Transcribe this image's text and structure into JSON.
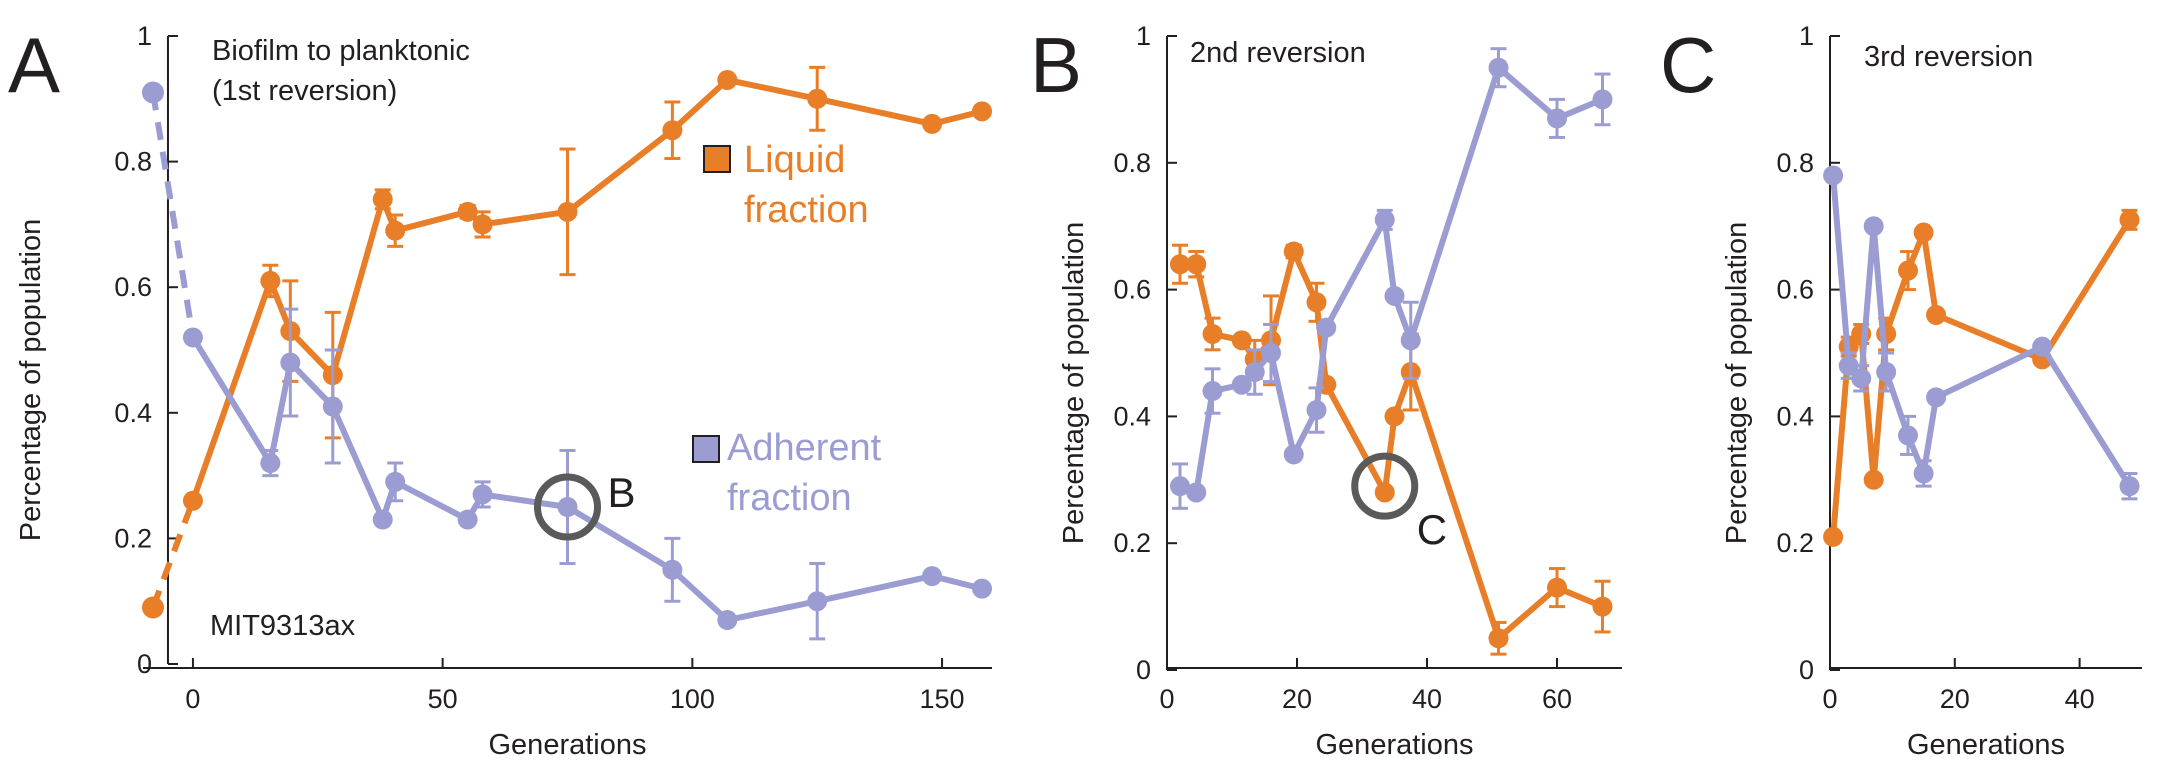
{
  "colors": {
    "liquid": "#e87e27",
    "adherent": "#9b9dd2",
    "circle": "#5a5a5a",
    "ink": "#231f20"
  },
  "chart_data": [
    {
      "type": "line",
      "panel_letter": "A",
      "title": "Biofilm to planktonic\n(1st reversion)",
      "strain_label": "MIT9313ax",
      "xlabel": "Generations",
      "ylabel": "Percentage of population",
      "xlim": [
        -10,
        160
      ],
      "ylim": [
        0,
        1
      ],
      "x_ticks": [
        0,
        50,
        100,
        150
      ],
      "y_ticks": [
        0,
        0.2,
        0.4,
        0.6,
        0.8,
        1
      ],
      "y_tick_labels": [
        "0",
        "0.2",
        "0.4",
        "0.6",
        "0.8",
        "1"
      ],
      "legend": [
        {
          "series": "liquid",
          "line1": "Liquid",
          "line2": "fraction"
        },
        {
          "series": "adherent",
          "line1": "Adherent",
          "line2": "fraction"
        }
      ],
      "series": [
        {
          "key": "liquid",
          "start_point": {
            "x": -8,
            "y": 0.09
          },
          "x": [
            0,
            15.5,
            19.5,
            28,
            38,
            40.5,
            55,
            58,
            75,
            96,
            107,
            125,
            148,
            158
          ],
          "y": [
            0.26,
            0.61,
            0.53,
            0.46,
            0.74,
            0.69,
            0.72,
            0.7,
            0.72,
            0.85,
            0.93,
            0.9,
            0.86,
            0.88
          ],
          "err": [
            0,
            0.025,
            0.08,
            0.1,
            0.015,
            0.025,
            0.01,
            0.02,
            0.1,
            0.045,
            0,
            0.05,
            0,
            0
          ]
        },
        {
          "key": "adherent",
          "start_point": {
            "x": -8,
            "y": 0.91
          },
          "x": [
            0,
            15.5,
            19.5,
            28,
            38,
            40.5,
            55,
            58,
            75,
            96,
            107,
            125,
            148,
            158
          ],
          "y": [
            0.52,
            0.32,
            0.48,
            0.41,
            0.23,
            0.29,
            0.23,
            0.27,
            0.25,
            0.15,
            0.07,
            0.1,
            0.14,
            0.12
          ],
          "err": [
            0,
            0.02,
            0.085,
            0.09,
            0,
            0.03,
            0,
            0.02,
            0.09,
            0.05,
            0,
            0.06,
            0,
            0
          ]
        }
      ],
      "marker": {
        "label": "B",
        "x": 75,
        "y": 0.25
      }
    },
    {
      "type": "line",
      "panel_letter": "B",
      "title": "2nd reversion",
      "xlabel": "Generations",
      "ylabel": "Percentage of population",
      "xlim": [
        0,
        70
      ],
      "ylim": [
        0,
        1
      ],
      "x_ticks": [
        0,
        20,
        40,
        60
      ],
      "y_ticks": [
        0,
        0.2,
        0.4,
        0.6,
        0.8,
        1
      ],
      "y_tick_labels": [
        "0",
        "0.2",
        "0.4",
        "0.6",
        "0.8",
        "1"
      ],
      "series": [
        {
          "key": "liquid",
          "x": [
            2,
            4.5,
            7,
            11.5,
            13.5,
            16,
            19.5,
            23,
            24.5,
            33.5,
            35,
            37.5,
            51,
            60,
            67
          ],
          "y": [
            0.64,
            0.64,
            0.53,
            0.52,
            0.49,
            0.52,
            0.66,
            0.58,
            0.45,
            0.28,
            0.4,
            0.47,
            0.05,
            0.13,
            0.1
          ],
          "err": [
            0.03,
            0.02,
            0.025,
            0,
            0.03,
            0.07,
            0.01,
            0.03,
            0,
            0,
            0,
            0.06,
            0.025,
            0.03,
            0.04
          ]
        },
        {
          "key": "adherent",
          "x": [
            2,
            4.5,
            7,
            11.5,
            13.5,
            16,
            19.5,
            23,
            24.5,
            33.5,
            35,
            37.5,
            51,
            60,
            67
          ],
          "y": [
            0.29,
            0.28,
            0.44,
            0.45,
            0.47,
            0.5,
            0.34,
            0.41,
            0.54,
            0.71,
            0.59,
            0.52,
            0.95,
            0.87,
            0.9
          ],
          "err": [
            0.035,
            0,
            0.035,
            0,
            0.035,
            0.045,
            0,
            0.035,
            0,
            0.015,
            0,
            0.06,
            0.03,
            0.03,
            0.04
          ]
        }
      ],
      "marker": {
        "label": "C",
        "x": 33.5,
        "y": 0.29
      }
    },
    {
      "type": "line",
      "panel_letter": "C",
      "title": "3rd reversion",
      "xlabel": "Generations",
      "ylabel": "Percentage of population",
      "xlim": [
        0,
        50
      ],
      "ylim": [
        0,
        1
      ],
      "x_ticks": [
        0,
        20,
        40
      ],
      "y_ticks": [
        0,
        0.2,
        0.4,
        0.6,
        0.8,
        1
      ],
      "y_tick_labels": [
        "0",
        "0.2",
        "0.4",
        "0.6",
        "0.8",
        "1"
      ],
      "series": [
        {
          "key": "liquid",
          "x": [
            0.5,
            3,
            5,
            7,
            9,
            12.5,
            15,
            17,
            34,
            48
          ],
          "y": [
            0.21,
            0.51,
            0.53,
            0.3,
            0.53,
            0.63,
            0.69,
            0.56,
            0.49,
            0.71
          ],
          "err": [
            0,
            0.015,
            0.015,
            0,
            0.025,
            0.03,
            0,
            0,
            0,
            0.015
          ]
        },
        {
          "key": "adherent",
          "x": [
            0.5,
            3,
            5,
            7,
            9,
            12.5,
            15,
            17,
            34,
            48
          ],
          "y": [
            0.78,
            0.48,
            0.46,
            0.7,
            0.47,
            0.37,
            0.31,
            0.43,
            0.51,
            0.29
          ],
          "err": [
            0,
            0.02,
            0.02,
            0,
            0.03,
            0.03,
            0.02,
            0,
            0,
            0.02
          ]
        }
      ]
    }
  ]
}
